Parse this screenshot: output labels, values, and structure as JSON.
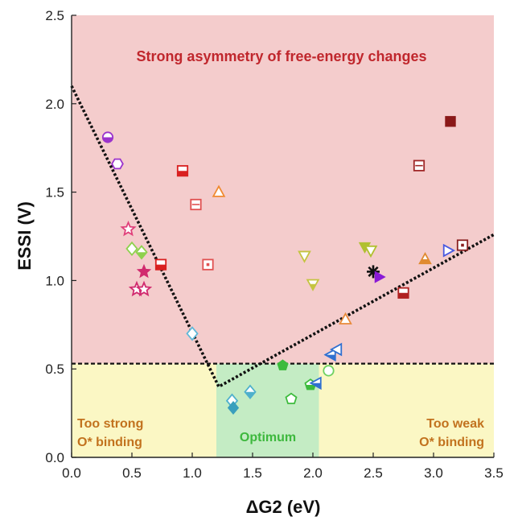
{
  "chart_data": {
    "type": "scatter",
    "xlabel": "ΔG2 (eV)",
    "ylabel": "ESSI (V)",
    "xlim": [
      0.0,
      3.5
    ],
    "ylim": [
      0.0,
      2.5
    ],
    "x_ticks": [
      "0.0",
      "0.5",
      "1.0",
      "1.5",
      "2.0",
      "2.5",
      "3.0",
      "3.5"
    ],
    "y_ticks": [
      "0.0",
      "0.5",
      "1.0",
      "1.5",
      "2.0",
      "2.5"
    ],
    "grid": false,
    "regions": {
      "strong_asymmetry": {
        "label": "Strong asymmetry of free-energy changes",
        "y_from": 0.53,
        "y_to": 2.5,
        "color": "#f4cccc"
      },
      "too_strong": {
        "label_line1": "Too strong",
        "label_line2": "O* binding",
        "x_from": 0.0,
        "x_to": 1.2,
        "y_from": 0.0,
        "y_to": 0.53,
        "color": "#fbf7c4"
      },
      "optimum": {
        "label": "Optimum",
        "x_from": 1.2,
        "x_to": 2.05,
        "y_from": 0.0,
        "y_to": 0.53,
        "color": "#c4ecc4"
      },
      "too_weak": {
        "label_line1": "Too weak",
        "label_line2": "O* binding",
        "x_from": 2.05,
        "x_to": 3.5,
        "y_from": 0.0,
        "y_to": 0.53,
        "color": "#fbf7c4"
      }
    },
    "threshold_line": {
      "y": 0.53
    },
    "volcano_line": {
      "points": [
        [
          0.0,
          2.1
        ],
        [
          1.22,
          0.4
        ],
        [
          3.5,
          1.26
        ]
      ]
    },
    "colors": {
      "label_red": "#c0272d",
      "label_orange": "#c2721e",
      "label_green": "#3db83d"
    },
    "points": [
      {
        "x": 0.3,
        "y": 1.81,
        "marker": "circle-half",
        "color": "#9b33cc"
      },
      {
        "x": 0.38,
        "y": 1.66,
        "marker": "hexagon-open",
        "color": "#9b33cc"
      },
      {
        "x": 0.47,
        "y": 1.29,
        "marker": "star-open",
        "color": "#e0407a"
      },
      {
        "x": 0.5,
        "y": 1.18,
        "marker": "diamond-open",
        "color": "#8ed14d"
      },
      {
        "x": 0.58,
        "y": 1.16,
        "marker": "diamond-half",
        "color": "#8ed14d"
      },
      {
        "x": 0.6,
        "y": 1.05,
        "marker": "star",
        "color": "#d12a6e"
      },
      {
        "x": 0.54,
        "y": 0.95,
        "marker": "star-open",
        "color": "#d12a6e"
      },
      {
        "x": 0.6,
        "y": 0.95,
        "marker": "star-open",
        "color": "#d12a6e"
      },
      {
        "x": 0.74,
        "y": 1.09,
        "marker": "square-half",
        "color": "#d92020"
      },
      {
        "x": 0.92,
        "y": 1.62,
        "marker": "square-half",
        "color": "#d92020"
      },
      {
        "x": 1.03,
        "y": 1.43,
        "marker": "square-cross",
        "color": "#e05050"
      },
      {
        "x": 1.13,
        "y": 1.09,
        "marker": "square-dot",
        "color": "#e05050"
      },
      {
        "x": 1.22,
        "y": 1.5,
        "marker": "triangle-open",
        "color": "#f08a30"
      },
      {
        "x": 1.0,
        "y": 0.7,
        "marker": "diamond-open",
        "color": "#60b8d8"
      },
      {
        "x": 1.33,
        "y": 0.32,
        "marker": "diamond-open",
        "color": "#4fb0cc"
      },
      {
        "x": 1.34,
        "y": 0.28,
        "marker": "diamond",
        "color": "#3a9fbd"
      },
      {
        "x": 1.48,
        "y": 0.37,
        "marker": "diamond-half",
        "color": "#4fb0cc"
      },
      {
        "x": 1.75,
        "y": 0.52,
        "marker": "pentagon",
        "color": "#3dbb3d"
      },
      {
        "x": 1.82,
        "y": 0.33,
        "marker": "pentagon-open",
        "color": "#3dbb3d"
      },
      {
        "x": 1.98,
        "y": 0.41,
        "marker": "pentagon-half",
        "color": "#3dbb3d"
      },
      {
        "x": 2.03,
        "y": 0.42,
        "marker": "tri-left-half",
        "color": "#3070d0"
      },
      {
        "x": 2.13,
        "y": 0.49,
        "marker": "circle-open",
        "color": "#6fd160"
      },
      {
        "x": 2.15,
        "y": 0.58,
        "marker": "tri-left-half",
        "color": "#3070d0"
      },
      {
        "x": 2.2,
        "y": 0.61,
        "marker": "tri-left-open",
        "color": "#3070d0"
      },
      {
        "x": 1.93,
        "y": 1.14,
        "marker": "tri-down-open",
        "color": "#c4c440"
      },
      {
        "x": 2.0,
        "y": 0.98,
        "marker": "tri-down-half",
        "color": "#c4c440"
      },
      {
        "x": 2.43,
        "y": 1.19,
        "marker": "tri-down",
        "color": "#b0c030"
      },
      {
        "x": 2.48,
        "y": 1.17,
        "marker": "tri-down-open",
        "color": "#b0c030"
      },
      {
        "x": 2.5,
        "y": 1.05,
        "marker": "asterisk",
        "color": "#111111"
      },
      {
        "x": 2.55,
        "y": 1.02,
        "marker": "tri-right",
        "color": "#8a1ad6"
      },
      {
        "x": 2.27,
        "y": 0.78,
        "marker": "triangle-open",
        "color": "#e88a3a"
      },
      {
        "x": 2.75,
        "y": 0.93,
        "marker": "square-half",
        "color": "#b02020"
      },
      {
        "x": 2.88,
        "y": 1.65,
        "marker": "square-cross",
        "color": "#a02828"
      },
      {
        "x": 2.93,
        "y": 1.12,
        "marker": "triangle-half",
        "color": "#e08a30"
      },
      {
        "x": 3.12,
        "y": 1.17,
        "marker": "tri-right-open",
        "color": "#4a5ae0"
      },
      {
        "x": 3.14,
        "y": 1.9,
        "marker": "square",
        "color": "#8a1818"
      },
      {
        "x": 3.24,
        "y": 1.2,
        "marker": "square-dot",
        "color": "#8a2020"
      }
    ]
  }
}
